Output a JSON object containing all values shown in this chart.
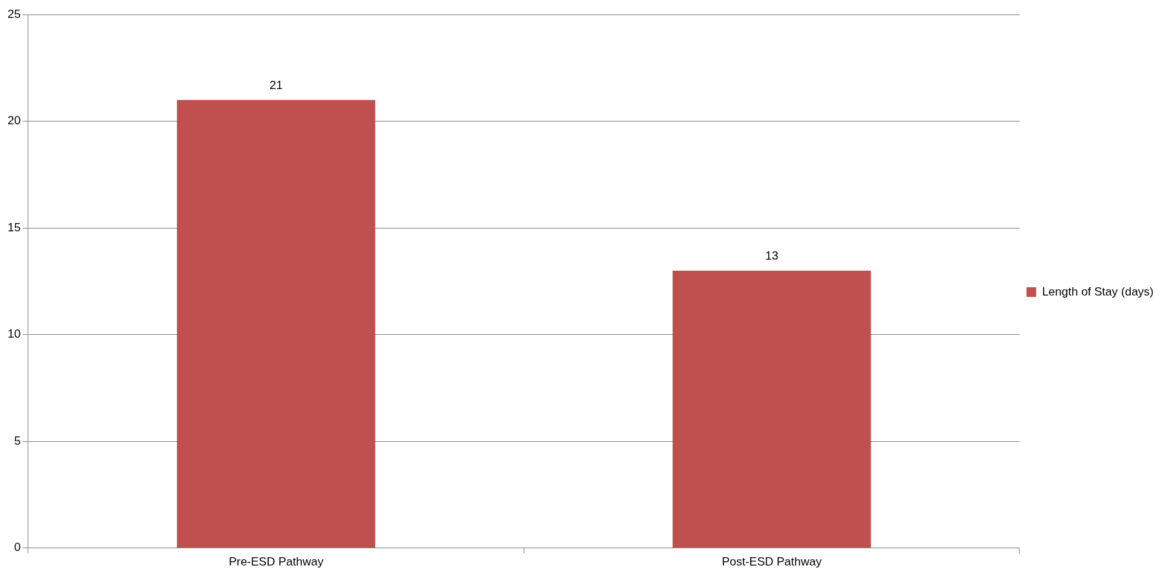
{
  "chart_data": {
    "type": "bar",
    "categories": [
      "Pre-ESD Pathway",
      "Post-ESD Pathway"
    ],
    "series": [
      {
        "name": "Length of Stay (days)",
        "color": "#c0504d",
        "values": [
          21,
          13
        ]
      }
    ],
    "ylim": [
      0,
      25
    ],
    "yticks": [
      0,
      5,
      10,
      15,
      20,
      25
    ],
    "grid": "y",
    "legend": "right",
    "data_labels": true
  }
}
